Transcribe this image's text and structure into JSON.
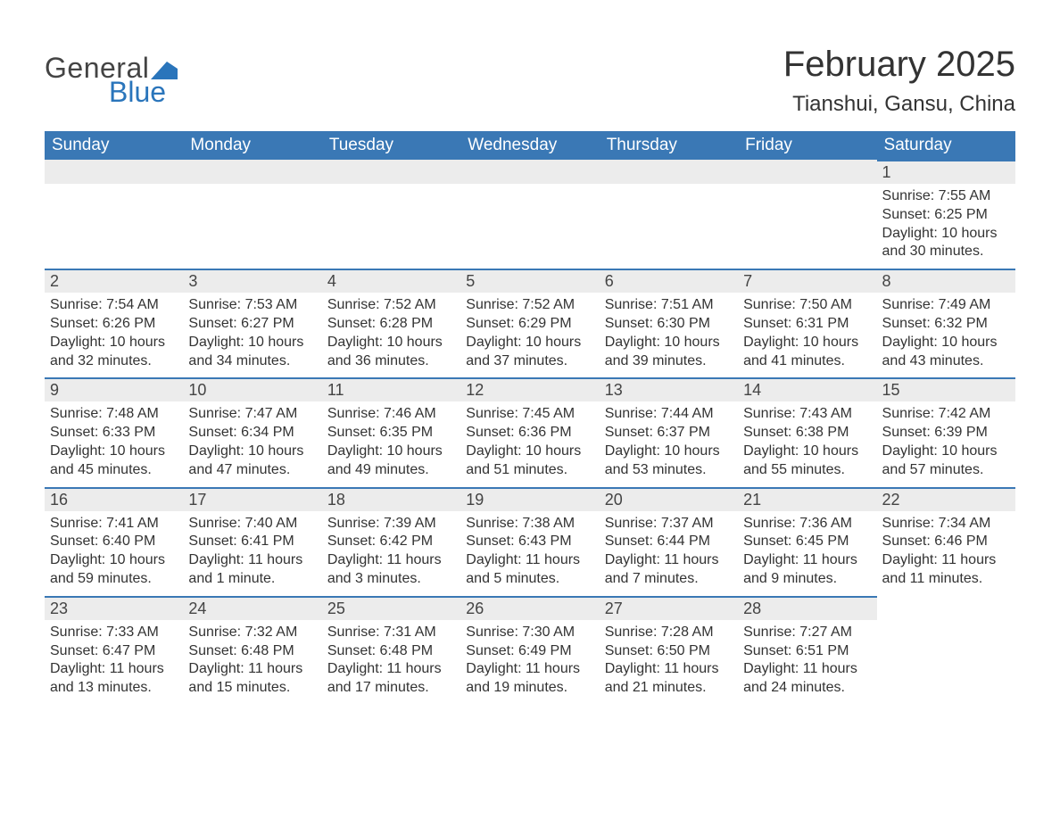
{
  "logo": {
    "text1": "General",
    "text2": "Blue",
    "flag_color": "#2a75bb"
  },
  "header": {
    "month_title": "February 2025",
    "location": "Tianshui, Gansu, China"
  },
  "colors": {
    "header_bg": "#3a78b5",
    "header_text": "#ffffff",
    "daynum_bg": "#ececec",
    "border_top": "#3a78b5",
    "body_text": "#333333",
    "logo_blue": "#2a75bb",
    "logo_gray": "#444444",
    "page_bg": "#ffffff"
  },
  "weekdays": [
    "Sunday",
    "Monday",
    "Tuesday",
    "Wednesday",
    "Thursday",
    "Friday",
    "Saturday"
  ],
  "labels": {
    "sunrise": "Sunrise: ",
    "sunset": "Sunset: ",
    "daylight": "Daylight: "
  },
  "first_day_index": 6,
  "days": [
    {
      "n": 1,
      "sunrise": "7:55 AM",
      "sunset": "6:25 PM",
      "daylight": "10 hours and 30 minutes."
    },
    {
      "n": 2,
      "sunrise": "7:54 AM",
      "sunset": "6:26 PM",
      "daylight": "10 hours and 32 minutes."
    },
    {
      "n": 3,
      "sunrise": "7:53 AM",
      "sunset": "6:27 PM",
      "daylight": "10 hours and 34 minutes."
    },
    {
      "n": 4,
      "sunrise": "7:52 AM",
      "sunset": "6:28 PM",
      "daylight": "10 hours and 36 minutes."
    },
    {
      "n": 5,
      "sunrise": "7:52 AM",
      "sunset": "6:29 PM",
      "daylight": "10 hours and 37 minutes."
    },
    {
      "n": 6,
      "sunrise": "7:51 AM",
      "sunset": "6:30 PM",
      "daylight": "10 hours and 39 minutes."
    },
    {
      "n": 7,
      "sunrise": "7:50 AM",
      "sunset": "6:31 PM",
      "daylight": "10 hours and 41 minutes."
    },
    {
      "n": 8,
      "sunrise": "7:49 AM",
      "sunset": "6:32 PM",
      "daylight": "10 hours and 43 minutes."
    },
    {
      "n": 9,
      "sunrise": "7:48 AM",
      "sunset": "6:33 PM",
      "daylight": "10 hours and 45 minutes."
    },
    {
      "n": 10,
      "sunrise": "7:47 AM",
      "sunset": "6:34 PM",
      "daylight": "10 hours and 47 minutes."
    },
    {
      "n": 11,
      "sunrise": "7:46 AM",
      "sunset": "6:35 PM",
      "daylight": "10 hours and 49 minutes."
    },
    {
      "n": 12,
      "sunrise": "7:45 AM",
      "sunset": "6:36 PM",
      "daylight": "10 hours and 51 minutes."
    },
    {
      "n": 13,
      "sunrise": "7:44 AM",
      "sunset": "6:37 PM",
      "daylight": "10 hours and 53 minutes."
    },
    {
      "n": 14,
      "sunrise": "7:43 AM",
      "sunset": "6:38 PM",
      "daylight": "10 hours and 55 minutes."
    },
    {
      "n": 15,
      "sunrise": "7:42 AM",
      "sunset": "6:39 PM",
      "daylight": "10 hours and 57 minutes."
    },
    {
      "n": 16,
      "sunrise": "7:41 AM",
      "sunset": "6:40 PM",
      "daylight": "10 hours and 59 minutes."
    },
    {
      "n": 17,
      "sunrise": "7:40 AM",
      "sunset": "6:41 PM",
      "daylight": "11 hours and 1 minute."
    },
    {
      "n": 18,
      "sunrise": "7:39 AM",
      "sunset": "6:42 PM",
      "daylight": "11 hours and 3 minutes."
    },
    {
      "n": 19,
      "sunrise": "7:38 AM",
      "sunset": "6:43 PM",
      "daylight": "11 hours and 5 minutes."
    },
    {
      "n": 20,
      "sunrise": "7:37 AM",
      "sunset": "6:44 PM",
      "daylight": "11 hours and 7 minutes."
    },
    {
      "n": 21,
      "sunrise": "7:36 AM",
      "sunset": "6:45 PM",
      "daylight": "11 hours and 9 minutes."
    },
    {
      "n": 22,
      "sunrise": "7:34 AM",
      "sunset": "6:46 PM",
      "daylight": "11 hours and 11 minutes."
    },
    {
      "n": 23,
      "sunrise": "7:33 AM",
      "sunset": "6:47 PM",
      "daylight": "11 hours and 13 minutes."
    },
    {
      "n": 24,
      "sunrise": "7:32 AM",
      "sunset": "6:48 PM",
      "daylight": "11 hours and 15 minutes."
    },
    {
      "n": 25,
      "sunrise": "7:31 AM",
      "sunset": "6:48 PM",
      "daylight": "11 hours and 17 minutes."
    },
    {
      "n": 26,
      "sunrise": "7:30 AM",
      "sunset": "6:49 PM",
      "daylight": "11 hours and 19 minutes."
    },
    {
      "n": 27,
      "sunrise": "7:28 AM",
      "sunset": "6:50 PM",
      "daylight": "11 hours and 21 minutes."
    },
    {
      "n": 28,
      "sunrise": "7:27 AM",
      "sunset": "6:51 PM",
      "daylight": "11 hours and 24 minutes."
    }
  ]
}
